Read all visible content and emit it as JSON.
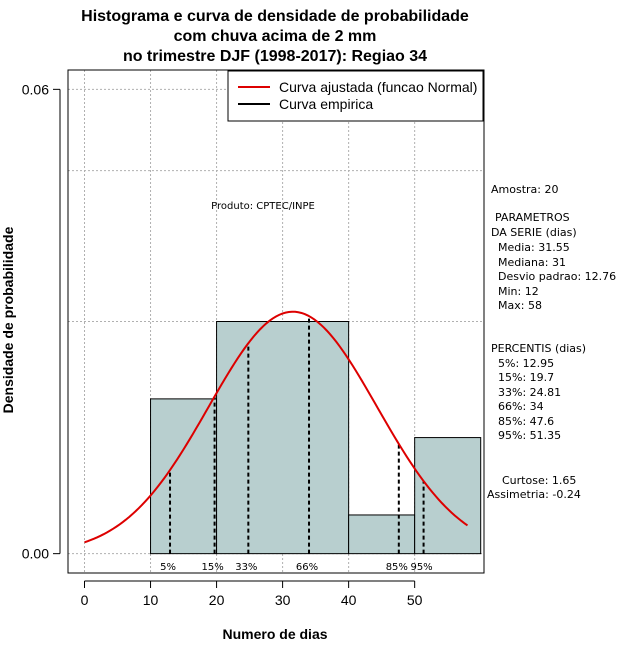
{
  "chart_data": {
    "type": "bar",
    "title_lines": [
      "Histograma e curva de densidade de probabilidade",
      "com chuva acima de 2 mm",
      "no trimestre DJF (1998-2017): Regiao 34"
    ],
    "xlabel": "Numero de dias",
    "ylabel": "Densidade de probabilidade",
    "xlim": [
      -2.5,
      60.5
    ],
    "ylim": [
      -0.0025,
      0.0625
    ],
    "x_ticks": [
      0,
      10,
      20,
      30,
      40,
      50
    ],
    "y_ticks": [
      0.0,
      0.06
    ],
    "y_tick_labels": [
      "0.00",
      "0.06"
    ],
    "bins": [
      {
        "start": 10,
        "end": 20,
        "density": 0.02
      },
      {
        "start": 20,
        "end": 40,
        "density": 0.03
      },
      {
        "start": 40,
        "end": 50,
        "density": 0.005
      },
      {
        "start": 50,
        "end": 60,
        "density": 0.015
      }
    ],
    "bar_color": "#b8cfcf",
    "curve_color": "#dd0000",
    "normal_fit": {
      "mean": 31.55,
      "sd": 12.76,
      "x_from": 0,
      "x_to": 58
    },
    "percentile_lines": [
      {
        "label": "5%",
        "x": 12.95
      },
      {
        "label": "15%",
        "x": 19.7
      },
      {
        "label": "33%",
        "x": 24.81
      },
      {
        "label": "66%",
        "x": 34
      },
      {
        "label": "85%",
        "x": 47.6
      },
      {
        "label": "95%",
        "x": 51.35
      }
    ],
    "legend": {
      "position": "top-right",
      "entries": [
        {
          "label": "Curva ajustada (funcao Normal)",
          "color": "#dd0000"
        },
        {
          "label": "Curva empirica",
          "color": "#000000"
        }
      ]
    },
    "grid": true,
    "credit": "Produto: CPTEC/INPE"
  },
  "stats": {
    "amostra": "Amostra: 20",
    "parametros_title": "PARAMETROS",
    "parametros_subtitle": "DA SERIE (dias)",
    "parametros": [
      "Media: 31.55",
      "Mediana: 31",
      "Desvio padrao: 12.76",
      "Min: 12",
      "Max: 58"
    ],
    "percentis_title": "PERCENTIS (dias)",
    "percentis": [
      "5%: 12.95",
      "15%: 19.7",
      "33%: 24.81",
      "66%: 34",
      "85%: 47.6",
      "95%: 51.35"
    ],
    "curtose": "Curtose: 1.65",
    "assimetria": "Assimetria: -0.24"
  }
}
